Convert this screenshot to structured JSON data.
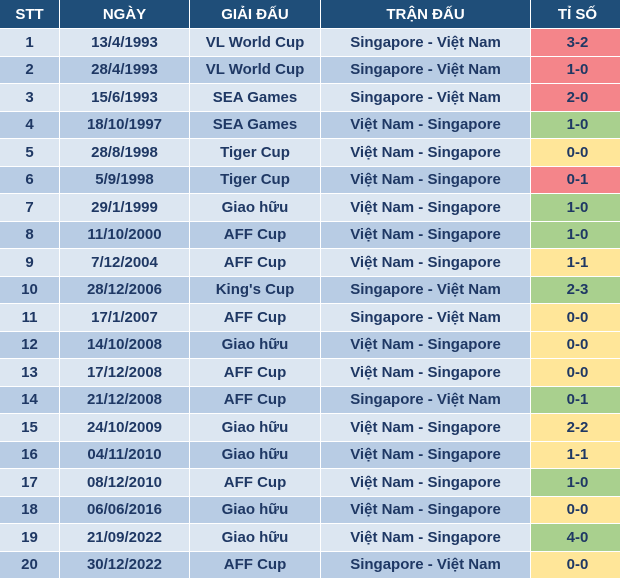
{
  "table": {
    "header": [
      "STT",
      "NGÀY",
      "GIẢI ĐẤU",
      "TRẬN ĐẤU",
      "TỈ SỐ"
    ],
    "rows": [
      [
        "1",
        "13/4/1993",
        "VL World Cup",
        "Singapore - Việt Nam",
        "3-2"
      ],
      [
        "2",
        "28/4/1993",
        "VL World Cup",
        "Singapore - Việt Nam",
        "1-0"
      ],
      [
        "3",
        "15/6/1993",
        "SEA Games",
        "Singapore - Việt Nam",
        "2-0"
      ],
      [
        "4",
        "18/10/1997",
        "SEA Games",
        "Việt Nam - Singapore",
        "1-0"
      ],
      [
        "5",
        "28/8/1998",
        "Tiger Cup",
        "Việt Nam - Singapore",
        "0-0"
      ],
      [
        "6",
        "5/9/1998",
        "Tiger Cup",
        "Việt Nam - Singapore",
        "0-1"
      ],
      [
        "7",
        "29/1/1999",
        "Giao hữu",
        "Việt Nam - Singapore",
        "1-0"
      ],
      [
        "8",
        "11/10/2000",
        "AFF Cup",
        "Việt Nam - Singapore",
        "1-0"
      ],
      [
        "9",
        "7/12/2004",
        "AFF Cup",
        "Việt Nam - Singapore",
        "1-1"
      ],
      [
        "10",
        "28/12/2006",
        "King's Cup",
        "Singapore - Việt Nam",
        "2-3"
      ],
      [
        "11",
        "17/1/2007",
        "AFF Cup",
        "Singapore - Việt Nam",
        "0-0"
      ],
      [
        "12",
        "14/10/2008",
        "Giao hữu",
        "Việt Nam - Singapore",
        "0-0"
      ],
      [
        "13",
        "17/12/2008",
        "AFF Cup",
        "Việt Nam - Singapore",
        "0-0"
      ],
      [
        "14",
        "21/12/2008",
        "AFF Cup",
        "Singapore - Việt Nam",
        "0-1"
      ],
      [
        "15",
        "24/10/2009",
        "Giao hữu",
        "Việt Nam - Singapore",
        "2-2"
      ],
      [
        "16",
        "04/11/2010",
        "Giao hữu",
        "Việt Nam - Singapore",
        "1-1"
      ],
      [
        "17",
        "08/12/2010",
        "AFF Cup",
        "Việt Nam - Singapore",
        "1-0"
      ],
      [
        "18",
        "06/06/2016",
        "Giao hữu",
        "Việt Nam - Singapore",
        "0-0"
      ],
      [
        "19",
        "21/09/2022",
        "Giao hữu",
        "Việt Nam - Singapore",
        "4-0"
      ],
      [
        "20",
        "30/12/2022",
        "AFF Cup",
        "Singapore - Việt Nam",
        "0-0"
      ]
    ],
    "score_colors": [
      "#f4858a",
      "#f4858a",
      "#f4858a",
      "#a9d08e",
      "#ffe699",
      "#f4858a",
      "#a9d08e",
      "#a9d08e",
      "#ffe699",
      "#a9d08e",
      "#ffe699",
      "#ffe699",
      "#ffe699",
      "#a9d08e",
      "#ffe699",
      "#ffe699",
      "#a9d08e",
      "#ffe699",
      "#a9d08e",
      "#ffe699"
    ]
  }
}
